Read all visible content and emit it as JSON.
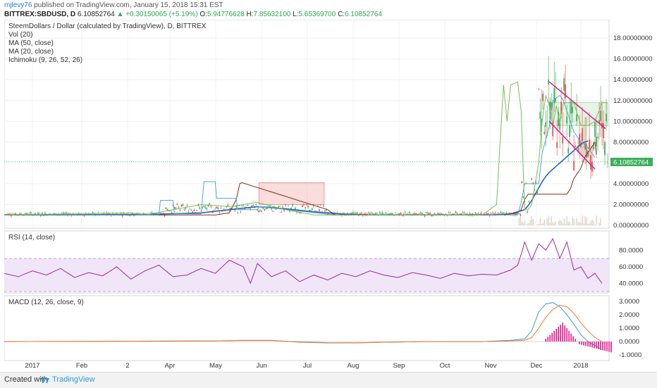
{
  "header": {
    "user": "mjlevy76",
    "published_text": "published on TradingView.com, January 15, 2018 15:31 EST",
    "symbol": "BITTREX:SBDUSD, D",
    "last": "6.10852764",
    "change": "+0.30150065 (+5.19%)",
    "o_label": "O:",
    "o_value": "5.94776628",
    "h_label": "H:",
    "h_value": "7.85632100",
    "l_label": "L:",
    "l_value": "5.65369700",
    "c_label": "C:",
    "c_value": "6.10852764"
  },
  "legend": {
    "title": "SteemDollars / Dollar (calculated by TradingView), D, BITTREX",
    "vol": "Vol (20)",
    "ma50": "MA (50, close)",
    "ma20": "MA (20, close)",
    "ichimoku": "Ichimoku (9, 26, 52, 26)"
  },
  "footer": {
    "created_with": "Created with",
    "brand": "TradingView"
  },
  "colors": {
    "up": "#2fa84f",
    "down": "#e0433d",
    "ma50": "#2866b5",
    "ma20": "#8a2a16",
    "conversion": "#4fa5d9",
    "leading": "#7bbd57",
    "rsi": "#9c27b0",
    "macd": "#3a9ad9",
    "signal": "#f07c2a",
    "hist": "#e2168c",
    "channel": "#e2168c",
    "price_tag": "#3aaf5a"
  },
  "chart_data": [
    {
      "type": "line",
      "title": "SteemDollars / Dollar (calculated by TradingView), D, BITTREX",
      "x_ticks": [
        "2017",
        "Feb",
        "2",
        "Apr",
        "May",
        "Jun",
        "Jul",
        "Aug",
        "Sep",
        "Oct",
        "Nov",
        "Dec",
        "2018"
      ],
      "y_ticks": [
        "0.00000000",
        "2.00000000",
        "4.00000000",
        "6.00000000",
        "8.00000000",
        "10.00000000",
        "12.00000000",
        "14.00000000",
        "16.00000000",
        "18.00000000"
      ],
      "ylim": [
        0,
        19.5
      ],
      "last_price_label": "6.10852764",
      "last_price": 6.10852764,
      "series": [
        {
          "name": "MA (50, close)",
          "x": [
            0,
            100,
            190,
            230,
            280,
            320,
            360,
            400,
            440,
            480,
            520,
            560,
            600,
            640,
            680,
            700,
            720,
            740,
            745,
            750,
            755,
            760,
            765,
            770,
            775,
            780,
            785,
            790,
            795,
            800,
            805,
            810,
            815,
            820,
            825,
            830
          ],
          "values": [
            1.0,
            1.0,
            1.05,
            1.1,
            1.2,
            1.5,
            1.8,
            1.6,
            1.3,
            1.1,
            1.0,
            1.0,
            1.0,
            1.0,
            1.0,
            1.0,
            1.1,
            1.5,
            1.9,
            2.4,
            3.0,
            3.6,
            4.2,
            4.7,
            5.1,
            5.4,
            5.7,
            6.0,
            6.3,
            6.6,
            6.9,
            7.2,
            7.5,
            7.8,
            8.0,
            8.1
          ]
        },
        {
          "name": "MA (20, close)",
          "x": [
            0,
            300,
            320,
            330,
            335,
            338,
            460,
            470,
            480,
            700,
            720,
            730,
            735,
            740,
            745,
            750,
            760,
            770,
            775,
            780,
            790,
            795,
            800,
            805,
            810,
            815,
            820,
            825,
            830,
            835,
            840,
            842
          ],
          "values": [
            1.0,
            1.0,
            1.2,
            2.5,
            4.0,
            4.1,
            1.5,
            1.0,
            1.0,
            1.0,
            1.1,
            1.2,
            1.5,
            2.5,
            3.0,
            3.0,
            3.0,
            3.0,
            3.0,
            3.0,
            3.0,
            3.0,
            3.0,
            3.5,
            4.5,
            5.0,
            5.5,
            6.5,
            7.0,
            7.5,
            8.0,
            6.8
          ]
        },
        {
          "name": "Ichimoku conversion",
          "x": [
            0,
            220,
            222,
            240,
            242,
            280,
            284,
            300,
            302,
            330,
            332,
            360,
            362,
            470,
            472,
            730,
            735,
            740,
            760,
            765,
            775,
            780,
            790,
            795,
            800,
            810,
            820,
            830,
            835,
            840
          ],
          "values": [
            1.0,
            1.0,
            2.4,
            2.4,
            1.1,
            1.1,
            4.2,
            4.2,
            2.6,
            2.6,
            1.5,
            1.5,
            1.8,
            1.0,
            1.0,
            1.0,
            2.2,
            4.0,
            4.0,
            7.0,
            9.5,
            12.0,
            12.5,
            12.0,
            11.0,
            9.0,
            8.0,
            7.5,
            7.0,
            6.5
          ]
        },
        {
          "name": "Ichimoku leading span",
          "x": [
            0,
            180,
            200,
            240,
            280,
            320,
            360,
            400,
            440,
            480,
            520,
            560,
            600,
            640,
            680,
            700,
            705,
            710,
            715,
            720,
            730,
            735,
            740,
            745,
            750,
            755,
            760,
            765,
            770,
            775,
            780,
            785,
            790,
            795,
            800,
            810,
            820,
            830,
            840,
            850,
            858
          ],
          "values": [
            1.0,
            1.2,
            1.0,
            1.5,
            2.0,
            1.8,
            2.2,
            1.5,
            1.0,
            1.0,
            1.0,
            1.0,
            1.0,
            1.0,
            1.0,
            2.0,
            8.0,
            13.5,
            10.0,
            13.5,
            13.8,
            11.0,
            1.5,
            1.5,
            2.0,
            4.0,
            6.0,
            10.0,
            12.5,
            11.5,
            9.5,
            11.5,
            9.8,
            11.8,
            11.8,
            11.8,
            9.6,
            9.6,
            10.0,
            11.8,
            11.8
          ]
        },
        {
          "name": "RSI (14, close)",
          "x": [
            0,
            20,
            40,
            60,
            80,
            100,
            120,
            140,
            160,
            180,
            200,
            220,
            240,
            260,
            280,
            300,
            320,
            340,
            350,
            360,
            380,
            400,
            420,
            440,
            460,
            480,
            500,
            520,
            540,
            560,
            580,
            600,
            620,
            640,
            660,
            680,
            700,
            720,
            730,
            735,
            740,
            750,
            760,
            770,
            780,
            790,
            800,
            810,
            820,
            830,
            840,
            850
          ],
          "values": [
            52,
            48,
            55,
            50,
            58,
            47,
            53,
            49,
            60,
            45,
            55,
            62,
            48,
            50,
            58,
            52,
            68,
            60,
            40,
            64,
            48,
            55,
            42,
            50,
            44,
            52,
            48,
            55,
            50,
            47,
            53,
            50,
            46,
            52,
            49,
            51,
            50,
            56,
            62,
            75,
            90,
            68,
            88,
            80,
            94,
            70,
            90,
            56,
            60,
            46,
            52,
            40
          ]
        },
        {
          "name": "MACD",
          "x": [
            0,
            300,
            340,
            380,
            420,
            460,
            500,
            540,
            600,
            680,
            720,
            740,
            750,
            760,
            770,
            780,
            790,
            800,
            810,
            820,
            830,
            840,
            850
          ],
          "values": [
            0.0,
            0.05,
            0.1,
            0.1,
            -0.05,
            -0.1,
            -0.1,
            -0.05,
            0.0,
            0.0,
            0.1,
            0.2,
            0.8,
            2.2,
            2.8,
            2.9,
            2.6,
            2.0,
            1.3,
            0.5,
            0.0,
            -0.3,
            -0.6
          ]
        },
        {
          "name": "Signal",
          "x": [
            0,
            300,
            340,
            380,
            420,
            460,
            500,
            540,
            600,
            680,
            720,
            740,
            750,
            760,
            770,
            780,
            790,
            800,
            810,
            820,
            830,
            840,
            850
          ],
          "values": [
            0.0,
            0.05,
            0.08,
            0.08,
            -0.02,
            -0.08,
            -0.09,
            -0.05,
            0.0,
            0.0,
            0.05,
            0.1,
            0.3,
            1.0,
            1.8,
            2.4,
            2.7,
            2.6,
            2.1,
            1.4,
            0.8,
            0.3,
            0.0
          ]
        }
      ],
      "rsi_ticks": [
        "40.0000",
        "60.0000",
        "80.0000"
      ],
      "rsi_range": [
        30,
        100
      ],
      "rsi_bands": [
        30,
        70
      ],
      "macd_ticks": [
        "-1.0000",
        "0.0000",
        "1.0000",
        "2.0000",
        "3.0000"
      ],
      "macd_range": [
        -1.2,
        3.2
      ],
      "channel": [
        {
          "x1": 775,
          "y1": 13.8,
          "x2": 855,
          "y2": 9.3
        },
        {
          "x1": 775,
          "y1": 10.0,
          "x2": 840,
          "y2": 5.4
        }
      ]
    }
  ],
  "panel_labels": {
    "rsi": "RSI (14, close)",
    "macd": "MACD (12, 26, close, 9)"
  }
}
